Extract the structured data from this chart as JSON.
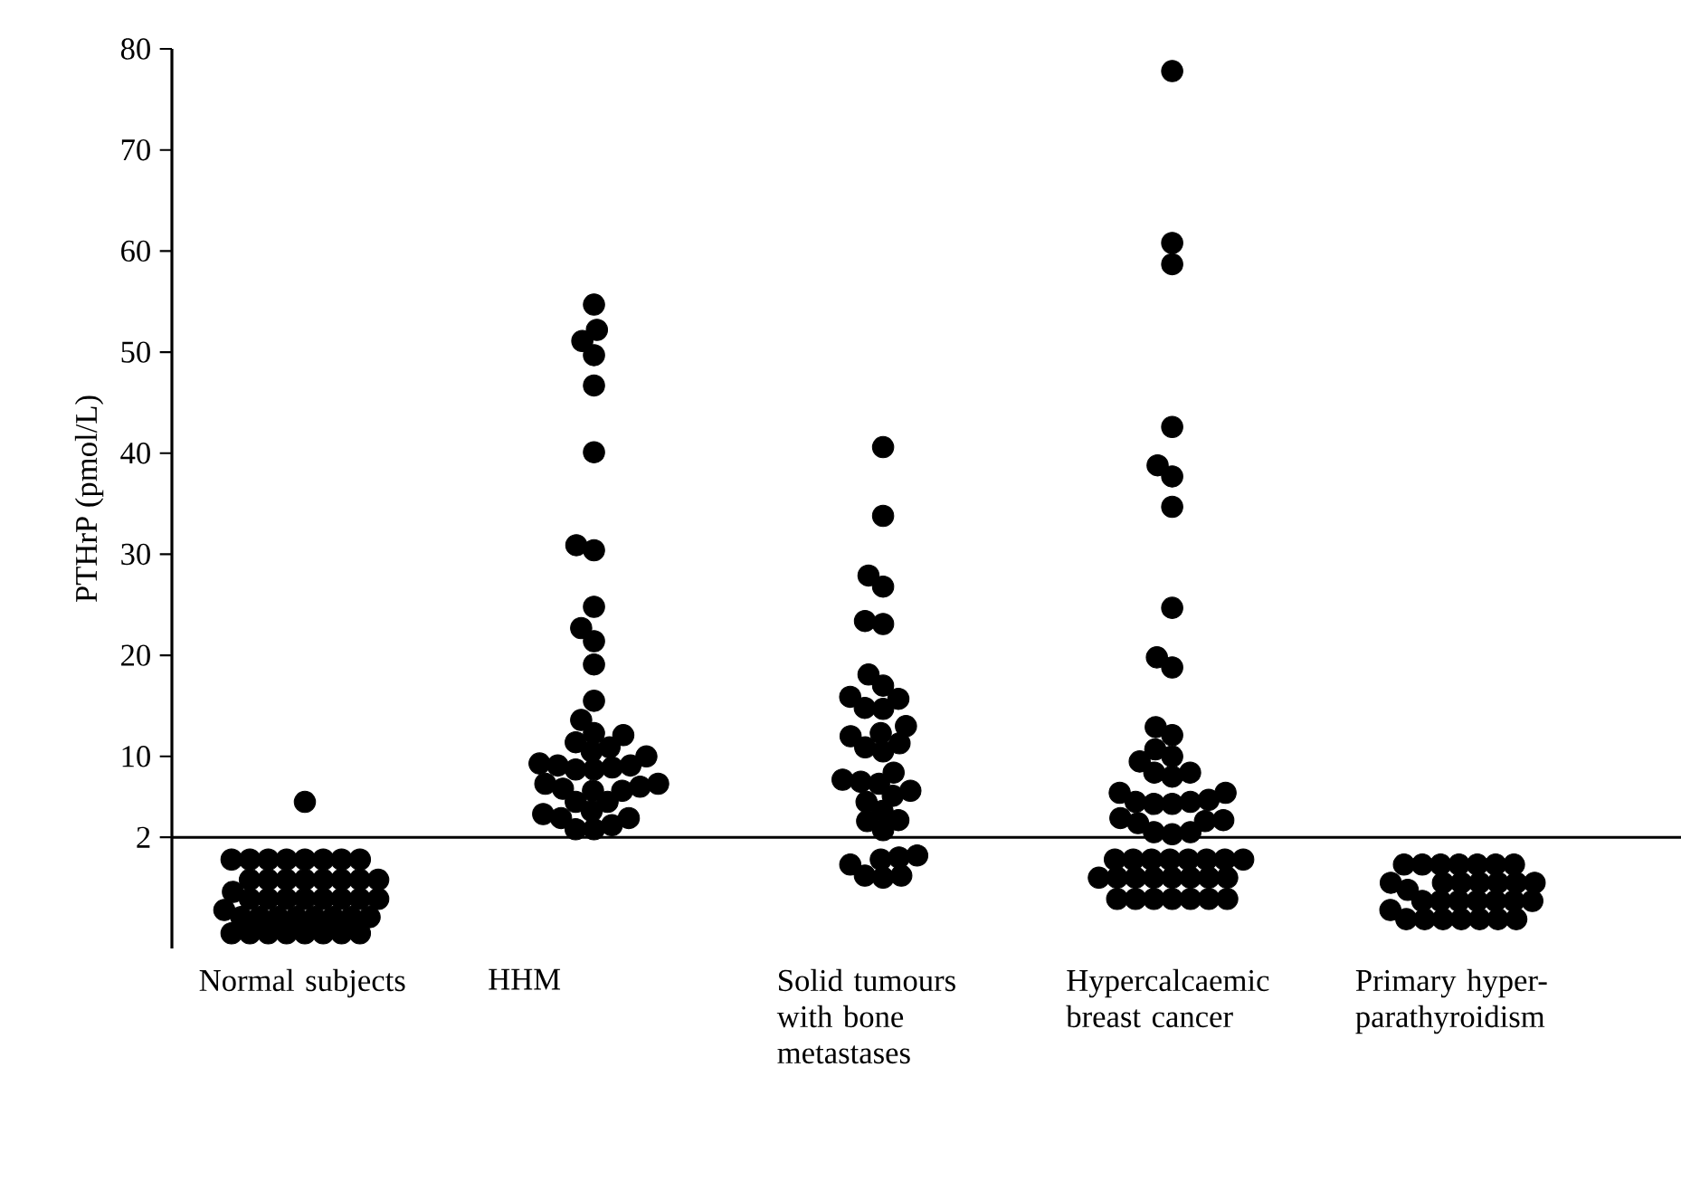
{
  "chart_data": {
    "type": "scatter",
    "ylabel": "PTHrP (pmol/L)",
    "grid": false,
    "categories": [
      "Normal subjects",
      "HHM",
      "Solid tumours with bone metastases",
      "Hypercalcaemic breast cancer",
      "Primary hyper-parathyroidism"
    ],
    "ylim": [
      -9,
      80
    ],
    "yticks": [
      2,
      10,
      20,
      30,
      40,
      50,
      60,
      70,
      80
    ],
    "ref_lines": [
      {
        "axis": "y",
        "value": 2,
        "color": "#000000",
        "line_style": "solid"
      }
    ],
    "series": [
      {
        "color": "#000000",
        "x": [
          "Normal subjects",
          "Normal subjects",
          "Normal subjects",
          "Normal subjects",
          "Normal subjects",
          "Normal subjects",
          "Normal subjects",
          "Normal subjects",
          "Normal subjects",
          "Normal subjects",
          "Normal subjects",
          "Normal subjects",
          "Normal subjects",
          "Normal subjects",
          "Normal subjects",
          "Normal subjects",
          "Normal subjects",
          "Normal subjects",
          "Normal subjects",
          "Normal subjects",
          "Normal subjects",
          "Normal subjects",
          "Normal subjects",
          "Normal subjects",
          "Normal subjects",
          "Normal subjects",
          "Normal subjects",
          "Normal subjects",
          "Normal subjects",
          "Normal subjects",
          "Normal subjects",
          "Normal subjects",
          "Normal subjects",
          "Normal subjects",
          "Normal subjects",
          "Normal subjects",
          "Normal subjects",
          "Normal subjects",
          "Normal subjects",
          "Normal subjects",
          "Normal subjects",
          "Normal subjects",
          "Normal subjects"
        ],
        "values": [
          -0.2,
          -0.2,
          -0.2,
          -0.2,
          -0.2,
          -0.2,
          -0.2,
          -0.2,
          -2.2,
          -2.2,
          -2.2,
          -2.2,
          -2.2,
          -2.2,
          -2.2,
          -2.2,
          -4.1,
          -4.1,
          -4.1,
          -4.1,
          -4.1,
          -4.1,
          -4.1,
          -4.1,
          -5.9,
          -5.9,
          -5.9,
          -5.9,
          -5.9,
          -5.9,
          -5.9,
          -5.9,
          -7.5,
          -7.5,
          -7.5,
          -7.5,
          -7.5,
          -7.5,
          -7.5,
          -7.5,
          -3.4,
          -5.2,
          5.5
        ]
      },
      {
        "color": "#000000",
        "x": [
          "HHM",
          "HHM",
          "HHM",
          "HHM",
          "HHM",
          "HHM",
          "HHM",
          "HHM",
          "HHM",
          "HHM",
          "HHM",
          "HHM",
          "HHM",
          "HHM",
          "HHM",
          "HHM",
          "HHM",
          "HHM",
          "HHM",
          "HHM",
          "HHM",
          "HHM",
          "HHM",
          "HHM",
          "HHM",
          "HHM",
          "HHM",
          "HHM",
          "HHM",
          "HHM",
          "HHM",
          "HHM",
          "HHM",
          "HHM",
          "HHM",
          "HHM",
          "HHM",
          "HHM",
          "HHM",
          "HHM",
          "HHM"
        ],
        "values": [
          54.7,
          52.2,
          51.1,
          49.7,
          46.7,
          40.1,
          30.4,
          30.9,
          24.8,
          22.7,
          21.4,
          19.1,
          15.5,
          12.3,
          12.1,
          13.6,
          11.4,
          10,
          8.7,
          9.1,
          8.7,
          9.3,
          10.9,
          8.9,
          10.5,
          9.1,
          6.6,
          7.3,
          6.6,
          7.0,
          6.8,
          7.3,
          5.5,
          5.5,
          4.6,
          3.9,
          3.9,
          4.3,
          3.2,
          2.8,
          2.8
        ]
      },
      {
        "color": "#000000",
        "x": [
          "Solid tumours with bone metastases",
          "Solid tumours with bone metastases",
          "Solid tumours with bone metastases",
          "Solid tumours with bone metastases",
          "Solid tumours with bone metastases",
          "Solid tumours with bone metastases",
          "Solid tumours with bone metastases",
          "Solid tumours with bone metastases",
          "Solid tumours with bone metastases",
          "Solid tumours with bone metastases",
          "Solid tumours with bone metastases",
          "Solid tumours with bone metastases",
          "Solid tumours with bone metastases",
          "Solid tumours with bone metastases",
          "Solid tumours with bone metastases",
          "Solid tumours with bone metastases",
          "Solid tumours with bone metastases",
          "Solid tumours with bone metastases",
          "Solid tumours with bone metastases",
          "Solid tumours with bone metastases",
          "Solid tumours with bone metastases",
          "Solid tumours with bone metastases",
          "Solid tumours with bone metastases",
          "Solid tumours with bone metastases",
          "Solid tumours with bone metastases",
          "Solid tumours with bone metastases",
          "Solid tumours with bone metastases",
          "Solid tumours with bone metastases",
          "Solid tumours with bone metastases",
          "Solid tumours with bone metastases",
          "Solid tumours with bone metastases",
          "Solid tumours with bone metastases",
          "Solid tumours with bone metastases",
          "Solid tumours with bone metastases",
          "Solid tumours with bone metastases",
          "Solid tumours with bone metastases"
        ],
        "values": [
          40.6,
          33.8,
          27.9,
          26.8,
          23.1,
          23.4,
          18.1,
          17.0,
          15.7,
          14.7,
          14.8,
          15.9,
          13.0,
          12.3,
          11.3,
          12.0,
          10.9,
          10.5,
          7.5,
          7.3,
          6.6,
          8.4,
          7.7,
          6.1,
          5.5,
          3.7,
          4.6,
          3.6,
          2.7,
          -0.2,
          0.0,
          0.2,
          -0.7,
          -1.8,
          -2.0,
          -1.8
        ]
      },
      {
        "color": "#000000",
        "x": [
          "Hypercalcaemic breast cancer",
          "Hypercalcaemic breast cancer",
          "Hypercalcaemic breast cancer",
          "Hypercalcaemic breast cancer",
          "Hypercalcaemic breast cancer",
          "Hypercalcaemic breast cancer",
          "Hypercalcaemic breast cancer",
          "Hypercalcaemic breast cancer",
          "Hypercalcaemic breast cancer",
          "Hypercalcaemic breast cancer",
          "Hypercalcaemic breast cancer",
          "Hypercalcaemic breast cancer",
          "Hypercalcaemic breast cancer",
          "Hypercalcaemic breast cancer",
          "Hypercalcaemic breast cancer",
          "Hypercalcaemic breast cancer",
          "Hypercalcaemic breast cancer",
          "Hypercalcaemic breast cancer",
          "Hypercalcaemic breast cancer",
          "Hypercalcaemic breast cancer",
          "Hypercalcaemic breast cancer",
          "Hypercalcaemic breast cancer",
          "Hypercalcaemic breast cancer",
          "Hypercalcaemic breast cancer",
          "Hypercalcaemic breast cancer",
          "Hypercalcaemic breast cancer",
          "Hypercalcaemic breast cancer",
          "Hypercalcaemic breast cancer",
          "Hypercalcaemic breast cancer",
          "Hypercalcaemic breast cancer",
          "Hypercalcaemic breast cancer",
          "Hypercalcaemic breast cancer",
          "Hypercalcaemic breast cancer",
          "Hypercalcaemic breast cancer",
          "Hypercalcaemic breast cancer",
          "Hypercalcaemic breast cancer",
          "Hypercalcaemic breast cancer",
          "Hypercalcaemic breast cancer",
          "Hypercalcaemic breast cancer",
          "Hypercalcaemic breast cancer",
          "Hypercalcaemic breast cancer",
          "Hypercalcaemic breast cancer",
          "Hypercalcaemic breast cancer",
          "Hypercalcaemic breast cancer",
          "Hypercalcaemic breast cancer",
          "Hypercalcaemic breast cancer",
          "Hypercalcaemic breast cancer",
          "Hypercalcaemic breast cancer",
          "Hypercalcaemic breast cancer",
          "Hypercalcaemic breast cancer",
          "Hypercalcaemic breast cancer",
          "Hypercalcaemic breast cancer",
          "Hypercalcaemic breast cancer",
          "Hypercalcaemic breast cancer",
          "Hypercalcaemic breast cancer"
        ],
        "values": [
          77.8,
          60.8,
          58.7,
          42.6,
          38.8,
          37.7,
          34.7,
          24.7,
          19.8,
          18.8,
          12.9,
          12.1,
          10.7,
          10.0,
          9.5,
          8.0,
          8.4,
          8.4,
          6.4,
          5.5,
          5.7,
          6.4,
          5.3,
          5.5,
          5.3,
          3.9,
          3.7,
          3.6,
          2.5,
          2.3,
          2.5,
          3.4,
          -0.2,
          -0.2,
          -0.2,
          -0.2,
          -0.2,
          -0.2,
          -0.2,
          -0.2,
          -2.0,
          -2.0,
          -2.0,
          -2.0,
          -2.0,
          -2.0,
          -2.0,
          -2.0,
          -4.1,
          -4.1,
          -4.1,
          -4.1,
          -4.1,
          -4.1,
          -4.1
        ]
      },
      {
        "color": "#000000",
        "x": [
          "Primary hyper-parathyroidism",
          "Primary hyper-parathyroidism",
          "Primary hyper-parathyroidism",
          "Primary hyper-parathyroidism",
          "Primary hyper-parathyroidism",
          "Primary hyper-parathyroidism",
          "Primary hyper-parathyroidism",
          "Primary hyper-parathyroidism",
          "Primary hyper-parathyroidism",
          "Primary hyper-parathyroidism",
          "Primary hyper-parathyroidism",
          "Primary hyper-parathyroidism",
          "Primary hyper-parathyroidism",
          "Primary hyper-parathyroidism",
          "Primary hyper-parathyroidism",
          "Primary hyper-parathyroidism",
          "Primary hyper-parathyroidism",
          "Primary hyper-parathyroidism",
          "Primary hyper-parathyroidism",
          "Primary hyper-parathyroidism",
          "Primary hyper-parathyroidism",
          "Primary hyper-parathyroidism",
          "Primary hyper-parathyroidism",
          "Primary hyper-parathyroidism",
          "Primary hyper-parathyroidism",
          "Primary hyper-parathyroidism",
          "Primary hyper-parathyroidism",
          "Primary hyper-parathyroidism",
          "Primary hyper-parathyroidism",
          "Primary hyper-parathyroidism"
        ],
        "values": [
          -0.7,
          -0.7,
          -0.7,
          -0.7,
          -0.7,
          -0.7,
          -0.7,
          -2.5,
          -2.5,
          -2.5,
          -2.5,
          -2.5,
          -2.5,
          -2.5,
          -4.3,
          -4.3,
          -4.3,
          -4.3,
          -4.3,
          -4.3,
          -4.3,
          -6.1,
          -6.1,
          -6.1,
          -6.1,
          -6.1,
          -6.1,
          -6.1,
          -3.2,
          -5.2
        ]
      }
    ]
  }
}
